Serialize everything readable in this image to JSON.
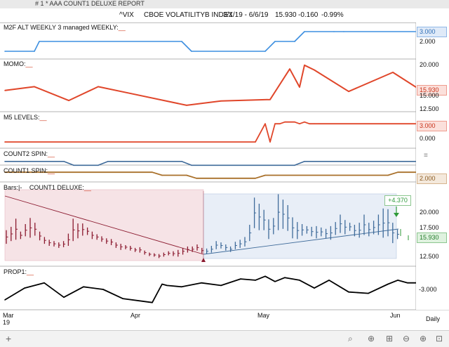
{
  "window": {
    "title": "# 1 *  AAA COUNT1 DELUXE REPORT"
  },
  "header": {
    "symbol": "^VIX",
    "name": "CBOE VOLATILITYB INDEX",
    "date_range": "3/1/19 - 6/6/19",
    "price": "15.930",
    "change": "-0.160",
    "change_pct": "-0.99%"
  },
  "panels": {
    "m2f": {
      "label": "M2F ALT WEEKLY 3 managed WEEKLY:",
      "tag": "3.000",
      "ticks": [
        "2.000"
      ]
    },
    "momo": {
      "label": "MOMO:",
      "tag": "15.930",
      "ticks": [
        "20.000",
        "15.000",
        "12.500"
      ]
    },
    "m5": {
      "label": "M5 LEVELS:",
      "tag": "3.000",
      "ticks": [
        "0.000"
      ]
    },
    "count2": {
      "label": "COUNT2 SPIN:"
    },
    "count1": {
      "label": "COUNT1 SPIN:",
      "tag": "2.000"
    },
    "bars": {
      "label": "Bars:|-",
      "study": "COUNT1 DELUXE:",
      "tag": "15.930",
      "callout": "+4.370",
      "ticks": [
        "20.000",
        "17.500",
        "12.500"
      ]
    },
    "prop1": {
      "label": "PROP1:",
      "tag": "-3.000"
    }
  },
  "x_axis": {
    "labels": [
      "Mar",
      "19",
      "Apr",
      "May",
      "Jun"
    ]
  },
  "footer": {
    "period": "Daily",
    "add": "+"
  },
  "colors": {
    "blue": "#3d8fe0",
    "red": "#e0462a",
    "brown": "#a9702a",
    "steel": "#3f6b9a",
    "wine": "#8b1a2f",
    "black": "#000000",
    "green": "#2f9a3a"
  },
  "chart_data": [
    {
      "type": "line",
      "panel": "M2F ALT WEEKLY 3 managed WEEKLY",
      "x": [
        0,
        6,
        7,
        36,
        38,
        53,
        55,
        59,
        61,
        67,
        69,
        84
      ],
      "values": [
        1,
        1,
        2,
        2,
        1,
        1,
        2,
        2,
        3,
        3,
        3,
        3
      ],
      "ylim": [
        0.5,
        3.5
      ]
    },
    {
      "type": "line",
      "panel": "MOMO",
      "x": [
        0,
        6,
        13,
        19,
        25,
        37,
        44,
        54,
        58,
        60,
        61,
        63,
        70,
        79,
        84
      ],
      "values": [
        15.5,
        16.3,
        13.4,
        16.3,
        15.0,
        12.4,
        13.3,
        13.6,
        20.0,
        16.2,
        20.8,
        19.8,
        15.3,
        19.3,
        16.0
      ],
      "ylim": [
        11.5,
        21.5
      ]
    },
    {
      "type": "line",
      "panel": "M5 LEVELS",
      "x": [
        0,
        51,
        53,
        54,
        55,
        56,
        57,
        59,
        60,
        61,
        62,
        63,
        64,
        84
      ],
      "values": [
        -1.2,
        -1.2,
        3.0,
        -1.2,
        3.0,
        3.0,
        3.4,
        3.4,
        3.0,
        3.4,
        3.0,
        3.0,
        3.0,
        3.0
      ],
      "ylim": [
        -2,
        4
      ]
    },
    {
      "type": "line",
      "panel": "COUNT2 SPIN",
      "x": [
        0,
        12,
        14,
        19,
        21,
        36,
        38,
        59,
        61,
        84
      ],
      "values": [
        1,
        1,
        0,
        0,
        1,
        1,
        0,
        0,
        1,
        1
      ],
      "ylim": [
        -0.5,
        1.5
      ]
    },
    {
      "type": "line",
      "panel": "COUNT1 SPIN",
      "x": [
        0,
        30,
        32,
        37,
        39,
        51,
        53,
        78,
        80,
        84
      ],
      "values": [
        2,
        2,
        1,
        1,
        0,
        0,
        1,
        1,
        2,
        2
      ],
      "ylim": [
        -0.5,
        2.5
      ]
    },
    {
      "type": "bar",
      "panel": "Bars (VIX OHLC)",
      "x": [
        0,
        1,
        2,
        3,
        4,
        5,
        6,
        7,
        8,
        9,
        10,
        11,
        12,
        13,
        14,
        15,
        16,
        17,
        18,
        19,
        20,
        21,
        22,
        23,
        24,
        25,
        26,
        27,
        28,
        29,
        30,
        31,
        32,
        33,
        34,
        35,
        36,
        37,
        38,
        39,
        40,
        41,
        42,
        43,
        44,
        45,
        46,
        47,
        48,
        49,
        50,
        51,
        52,
        53,
        54,
        55,
        56,
        57,
        58,
        59,
        60,
        61,
        62,
        63,
        64,
        65,
        66,
        67,
        68,
        69,
        70,
        71,
        72,
        73,
        74,
        75,
        76,
        77,
        78,
        79,
        80,
        81,
        82
      ],
      "low": [
        14.2,
        14.6,
        14.8,
        14.9,
        15.3,
        15.1,
        15.4,
        14.7,
        14.2,
        13.9,
        13.8,
        13.6,
        13.7,
        13.9,
        14.6,
        15.0,
        15.4,
        15.5,
        14.9,
        14.8,
        14.5,
        14.2,
        14.0,
        13.6,
        13.3,
        13.4,
        13.2,
        13.0,
        12.9,
        12.6,
        12.4,
        12.3,
        12.1,
        12.3,
        12.5,
        12.4,
        12.3,
        12.6,
        12.9,
        13.0,
        13.2,
        12.8,
        12.7,
        12.9,
        13.4,
        13.5,
        13.2,
        13.0,
        13.4,
        13.6,
        13.8,
        14.6,
        16.5,
        16.2,
        16.2,
        14.9,
        15.6,
        16.2,
        16.4,
        16.1,
        15.0,
        14.9,
        15.4,
        15.7,
        15.3,
        15.0,
        15.3,
        15.0,
        14.8,
        15.5,
        15.8,
        15.6,
        16.1,
        15.3,
        15.1,
        15.5,
        15.3,
        15.6,
        15.5,
        15.1,
        15.3,
        14.3,
        14.9
      ],
      "high": [
        16.2,
        16.7,
        17.9,
        16.0,
        17.1,
        18.0,
        17.3,
        16.0,
        15.2,
        14.8,
        14.6,
        14.4,
        14.6,
        15.7,
        17.9,
        17.2,
        17.2,
        16.6,
        16.0,
        15.6,
        15.3,
        15.0,
        14.9,
        14.4,
        14.2,
        14.0,
        13.9,
        13.6,
        13.7,
        13.2,
        12.9,
        12.8,
        12.7,
        12.9,
        13.1,
        13.1,
        13.3,
        13.6,
        13.8,
        13.8,
        14.1,
        13.6,
        13.5,
        13.9,
        14.6,
        14.4,
        14.1,
        13.8,
        14.5,
        14.8,
        15.2,
        17.0,
        21.0,
        20.1,
        19.2,
        17.8,
        18.0,
        21.5,
        20.7,
        19.9,
        18.1,
        17.4,
        17.1,
        16.8,
        16.7,
        16.8,
        16.6,
        16.4,
        16.8,
        17.4,
        18.5,
        17.7,
        17.3,
        17.0,
        17.3,
        18.5,
        17.3,
        17.6,
        18.5,
        19.4,
        19.3,
        17.3,
        16.3
      ],
      "ylim": [
        11.0,
        23.0
      ]
    },
    {
      "type": "line",
      "panel": "PROP1",
      "x": [
        0,
        4,
        8,
        12,
        16,
        20,
        24,
        28,
        30,
        32,
        33,
        36,
        40,
        44,
        48,
        51,
        53,
        55,
        57,
        60,
        63,
        66,
        70,
        74,
        78,
        80,
        82,
        84
      ],
      "values": [
        -4.3,
        -3.4,
        -3.0,
        -4.1,
        -3.3,
        -3.5,
        -4.2,
        -4.4,
        -4.5,
        -3.1,
        -3.2,
        -3.3,
        -3.0,
        -3.2,
        -2.7,
        -2.8,
        -2.5,
        -2.9,
        -2.6,
        -2.8,
        -3.4,
        -2.8,
        -3.7,
        -3.8,
        -3.1,
        -2.8,
        -3.0,
        -3.0
      ],
      "ylim": [
        -5.0,
        -2.0
      ]
    }
  ]
}
